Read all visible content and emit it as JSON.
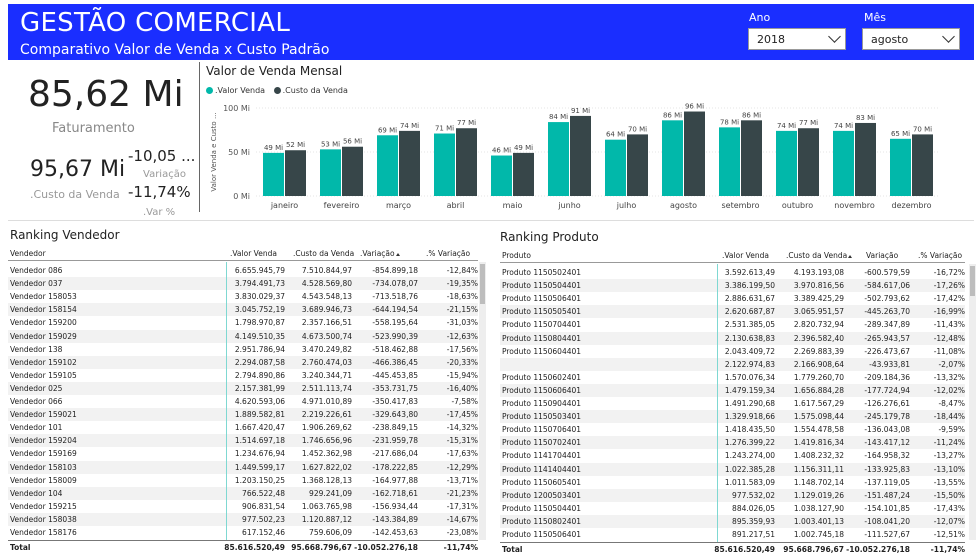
{
  "header": {
    "title": "GESTÃO COMERCIAL",
    "subtitle": "Comparativo Valor de Venda x Custo Padrão",
    "year_label": "Ano",
    "year_value": "2018",
    "month_label": "Mês",
    "month_value": "agosto"
  },
  "kpis": {
    "faturamento_value": "85,62 Mi",
    "faturamento_label": "Faturamento",
    "custo_value": "95,67 Mi",
    "custo_label": ".Custo da Venda",
    "variacao_value": "-10,05 ...",
    "variacao_label": "Variação",
    "var_pct_value": "-11,74%",
    "var_pct_label": ".Var %"
  },
  "colors": {
    "header_bg": "#1a2eff",
    "valor_venda": "#01b8aa",
    "custo_venda": "#374649"
  },
  "chart_data": {
    "type": "bar",
    "title": "Valor de Venda Mensal",
    "ylabel": "Valor Venda e Custo ...",
    "xlabel": "",
    "ylim": [
      0,
      100
    ],
    "yticks": [
      "100 Mi",
      "50 Mi",
      "0 Mi"
    ],
    "yticks_values": [
      100,
      50,
      0
    ],
    "categories": [
      "janeiro",
      "fevereiro",
      "março",
      "abril",
      "maio",
      "junho",
      "julho",
      "agosto",
      "setembro",
      "outubro",
      "novembro",
      "dezembro"
    ],
    "series": [
      {
        "name": ".Valor Venda",
        "values": [
          49,
          53,
          69,
          71,
          46,
          84,
          64,
          86,
          78,
          74,
          74,
          65
        ],
        "labels": [
          "49 Mi",
          "53 Mi",
          "69 Mi",
          "71 Mi",
          "46 Mi",
          "84 Mi",
          "64 Mi",
          "86 Mi",
          "78 Mi",
          "74 Mi",
          "74 Mi",
          "65 Mi"
        ]
      },
      {
        "name": ".Custo da Venda",
        "values": [
          52,
          56,
          74,
          77,
          49,
          91,
          70,
          96,
          86,
          77,
          83,
          70
        ],
        "labels": [
          "52 Mi",
          "56 Mi",
          "74 Mi",
          "77 Mi",
          "49 Mi",
          "91 Mi",
          "70 Mi",
          "96 Mi",
          "86 Mi",
          "77 Mi",
          "83 Mi",
          "70 Mi"
        ]
      }
    ]
  },
  "ranking_vendedor": {
    "title": "Ranking Vendedor",
    "columns": [
      "Vendedor",
      ".Valor Venda",
      ".Custo da Venda",
      ".Variação",
      ".% Variação"
    ],
    "rows": [
      [
        "Vendedor 086",
        "6.655.945,79",
        "7.510.844,97",
        "-854.899,18",
        "-12,84%"
      ],
      [
        "Vendedor 037",
        "3.794.491,73",
        "4.528.569,80",
        "-734.078,07",
        "-19,35%"
      ],
      [
        "Vendedor 158053",
        "3.830.029,37",
        "4.543.548,13",
        "-713.518,76",
        "-18,63%"
      ],
      [
        "Vendedor 158154",
        "3.045.752,19",
        "3.689.946,73",
        "-644.194,54",
        "-21,15%"
      ],
      [
        "Vendedor 159200",
        "1.798.970,87",
        "2.357.166,51",
        "-558.195,64",
        "-31,03%"
      ],
      [
        "Vendedor 159029",
        "4.149.510,35",
        "4.673.500,74",
        "-523.990,39",
        "-12,63%"
      ],
      [
        "Vendedor 138",
        "2.951.786,94",
        "3.470.249,82",
        "-518.462,88",
        "-17,56%"
      ],
      [
        "Vendedor 159102",
        "2.294.087,58",
        "2.760.474,03",
        "-466.386,45",
        "-20,33%"
      ],
      [
        "Vendedor 159105",
        "2.794.890,86",
        "3.240.344,71",
        "-445.453,85",
        "-15,94%"
      ],
      [
        "Vendedor 025",
        "2.157.381,99",
        "2.511.113,74",
        "-353.731,75",
        "-16,40%"
      ],
      [
        "Vendedor 066",
        "4.620.593,06",
        "4.971.010,89",
        "-350.417,83",
        "-7,58%"
      ],
      [
        "Vendedor 159021",
        "1.889.582,81",
        "2.219.226,61",
        "-329.643,80",
        "-17,45%"
      ],
      [
        "Vendedor 101",
        "1.667.420,47",
        "1.906.269,62",
        "-238.849,15",
        "-14,32%"
      ],
      [
        "Vendedor 159204",
        "1.514.697,18",
        "1.746.656,96",
        "-231.959,78",
        "-15,31%"
      ],
      [
        "Vendedor 159169",
        "1.234.676,94",
        "1.452.362,98",
        "-217.686,04",
        "-17,63%"
      ],
      [
        "Vendedor 158103",
        "1.449.599,17",
        "1.627.822,02",
        "-178.222,85",
        "-12,29%"
      ],
      [
        "Vendedor 158009",
        "1.203.150,25",
        "1.368.128,13",
        "-164.977,88",
        "-13,71%"
      ],
      [
        "Vendedor 104",
        "766.522,48",
        "929.241,09",
        "-162.718,61",
        "-21,23%"
      ],
      [
        "Vendedor 159215",
        "906.831,54",
        "1.063.765,98",
        "-156.934,44",
        "-17,31%"
      ],
      [
        "Vendedor 158038",
        "977.502,23",
        "1.120.887,12",
        "-143.384,89",
        "-14,67%"
      ],
      [
        "Vendedor 158176",
        "617.152,46",
        "759.606,09",
        "-142.453,63",
        "-23,08%"
      ]
    ],
    "total": [
      "Total",
      "85.616.520,49",
      "95.668.796,67",
      "-10.052.276,18",
      "-11,74%"
    ]
  },
  "ranking_produto": {
    "title": "Ranking Produto",
    "columns": [
      "Produto",
      ".Valor Venda",
      ".Custo da Venda",
      "Variação",
      ".% Variação"
    ],
    "rows": [
      [
        "Produto 1150502401",
        "3.592.613,49",
        "4.193.193,08",
        "-600.579,59",
        "-16,72%"
      ],
      [
        "Produto 1150504401",
        "3.386.199,50",
        "3.970.816,56",
        "-584.617,06",
        "-17,26%"
      ],
      [
        "Produto 1150506401",
        "2.886.631,67",
        "3.389.425,29",
        "-502.793,62",
        "-17,42%"
      ],
      [
        "Produto 1150505401",
        "2.620.687,87",
        "3.065.951,57",
        "-445.263,70",
        "-16,99%"
      ],
      [
        "Produto 1150704401",
        "2.531.385,05",
        "2.820.732,94",
        "-289.347,89",
        "-11,43%"
      ],
      [
        "Produto 1150804401",
        "2.130.638,83",
        "2.396.582,40",
        "-265.943,57",
        "-12,48%"
      ],
      [
        "Produto 1150604401",
        "2.043.409,72",
        "2.269.883,39",
        "-226.473,67",
        "-11,08%"
      ],
      [
        "",
        "2.122.974,83",
        "2.166.908,64",
        "-43.933,81",
        "-2,07%"
      ],
      [
        "Produto 1150602401",
        "1.570.076,34",
        "1.779.260,70",
        "-209.184,36",
        "-13,32%"
      ],
      [
        "Produto 1150606401",
        "1.479.159,34",
        "1.656.884,28",
        "-177.724,94",
        "-12,02%"
      ],
      [
        "Produto 1150904401",
        "1.491.290,68",
        "1.617.567,29",
        "-126.276,61",
        "-8,47%"
      ],
      [
        "Produto 1150503401",
        "1.329.918,66",
        "1.575.098,44",
        "-245.179,78",
        "-18,44%"
      ],
      [
        "Produto 1150706401",
        "1.418.435,50",
        "1.554.478,58",
        "-136.043,08",
        "-9,59%"
      ],
      [
        "Produto 1150702401",
        "1.276.399,22",
        "1.419.816,34",
        "-143.417,12",
        "-11,24%"
      ],
      [
        "Produto 1141704401",
        "1.243.274,00",
        "1.408.232,32",
        "-164.958,32",
        "-13,27%"
      ],
      [
        "Produto 1141404401",
        "1.022.385,28",
        "1.156.311,11",
        "-133.925,83",
        "-13,10%"
      ],
      [
        "Produto 1150605401",
        "1.011.583,09",
        "1.148.702,14",
        "-137.119,05",
        "-13,55%"
      ],
      [
        "Produto 1200503401",
        "977.532,02",
        "1.129.019,26",
        "-151.487,24",
        "-15,50%"
      ],
      [
        "Produto 1150504401",
        "884.026,05",
        "1.038.127,90",
        "-154.101,85",
        "-17,43%"
      ],
      [
        "Produto 1150802401",
        "895.359,93",
        "1.003.401,13",
        "-108.041,20",
        "-12,07%"
      ],
      [
        "Produto 1150506401",
        "891.217,51",
        "1.002.745,18",
        "-111.527,67",
        "-12,51%"
      ]
    ],
    "total": [
      "Total",
      "85.616.520,49",
      "95.668.796,67",
      "-10.052.276,18",
      "-11,74%"
    ]
  }
}
